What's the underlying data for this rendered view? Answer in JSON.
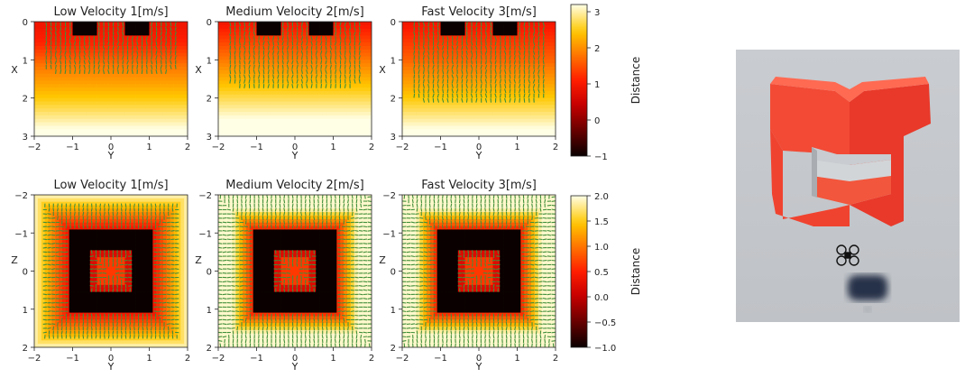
{
  "chart_data": [
    {
      "type": "heatmap",
      "title": "Low Velocity 1[m/s]",
      "xlabel": "Y",
      "ylabel": "X",
      "xlim": [
        -2,
        2
      ],
      "ylim": [
        3,
        0
      ],
      "xticks": [
        "−2",
        "−1",
        "0",
        "1",
        "2"
      ],
      "yticks": [
        "0",
        "1",
        "2",
        "3"
      ],
      "velocity": 1,
      "color_range": [
        -1,
        3.2
      ]
    },
    {
      "type": "heatmap",
      "title": "Medium Velocity 2[m/s]",
      "xlabel": "Y",
      "ylabel": "X",
      "xlim": [
        -2,
        2
      ],
      "ylim": [
        3,
        0
      ],
      "xticks": [
        "−2",
        "−1",
        "0",
        "1",
        "2"
      ],
      "yticks": [
        "0",
        "1",
        "2",
        "3"
      ],
      "velocity": 2,
      "color_range": [
        -1,
        3.2
      ]
    },
    {
      "type": "heatmap",
      "title": "Fast Velocity 3[m/s]",
      "xlabel": "Y",
      "ylabel": "X",
      "xlim": [
        -2,
        2
      ],
      "ylim": [
        3,
        0
      ],
      "xticks": [
        "−2",
        "−1",
        "0",
        "1",
        "2"
      ],
      "yticks": [
        "0",
        "1",
        "2",
        "3"
      ],
      "velocity": 3,
      "color_range": [
        -1,
        3.2
      ]
    },
    {
      "type": "heatmap",
      "title": "Low Velocity 1[m/s]",
      "xlabel": "Y",
      "ylabel": "Z",
      "xlim": [
        -2,
        2
      ],
      "ylim": [
        2,
        -2
      ],
      "xticks": [
        "−2",
        "−1",
        "0",
        "1",
        "2"
      ],
      "yticks": [
        "−2",
        "−1",
        "0",
        "1",
        "2"
      ],
      "velocity": 1,
      "color_range": [
        -1,
        2
      ]
    },
    {
      "type": "heatmap",
      "title": "Medium Velocity 2[m/s]",
      "xlabel": "Y",
      "ylabel": "Z",
      "xlim": [
        -2,
        2
      ],
      "ylim": [
        2,
        -2
      ],
      "xticks": [
        "−2",
        "−1",
        "0",
        "1",
        "2"
      ],
      "yticks": [
        "−2",
        "−1",
        "0",
        "1",
        "2"
      ],
      "velocity": 2,
      "color_range": [
        -1,
        2
      ]
    },
    {
      "type": "heatmap",
      "title": "Fast Velocity 3[m/s]",
      "xlabel": "Y",
      "ylabel": "Z",
      "xlim": [
        -2,
        2
      ],
      "ylim": [
        2,
        -2
      ],
      "xticks": [
        "−2",
        "−1",
        "0",
        "1",
        "2"
      ],
      "yticks": [
        "−2",
        "−1",
        "0",
        "1",
        "2"
      ],
      "velocity": 3,
      "color_range": [
        -1,
        2
      ]
    }
  ],
  "colorbars": [
    {
      "label": "Distance",
      "range": [
        -1,
        3.2
      ],
      "ticks": [
        "3",
        "2",
        "1",
        "0",
        "−1"
      ],
      "tick_values": [
        3,
        2,
        1,
        0,
        -1
      ]
    },
    {
      "label": "Distance",
      "range": [
        -1,
        2
      ],
      "ticks": [
        "2.0",
        "1.5",
        "1.0",
        "0.5",
        "0.0",
        "−0.5",
        "−1.0"
      ],
      "tick_values": [
        2,
        1.5,
        1,
        0.5,
        0,
        -0.5,
        -1
      ]
    }
  ],
  "colors": {
    "arrow": "#3f8f3a",
    "obstacle": "#0a0000",
    "gate": "#ee3b2b",
    "drone": "#111111",
    "shadow": "#27304a"
  },
  "photo": {
    "icons": [
      "gate-obstacle",
      "quadrotor-drone-icon",
      "drone-shadow"
    ]
  }
}
